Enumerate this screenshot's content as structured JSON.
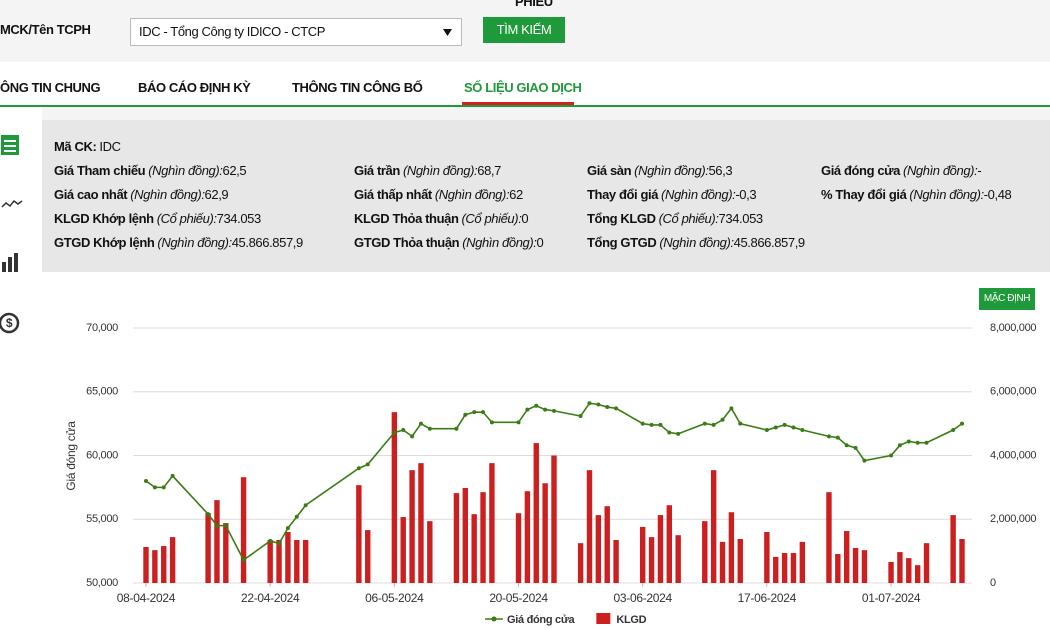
{
  "header": {
    "top_cut": "PHIẾU",
    "search_label": "MCK/Tên TCPH",
    "select_value": "IDC - Tổng Công ty IDICO - CTCP",
    "search_button": "TÌM KIẾM"
  },
  "tabs": [
    "ÔNG TIN CHUNG",
    "BÁO CÁO ĐỊNH KỲ",
    "THÔNG TIN CÔNG BỐ",
    "SỐ LIỆU GIAO DỊCH"
  ],
  "info": {
    "code": {
      "label": "Mã CK:",
      "value": "IDC"
    },
    "columns": [
      [
        {
          "label": "Giá Tham chiếu",
          "unit": "(Nghìn đồng):",
          "value": "62,5"
        },
        {
          "label": "Giá cao nhất",
          "unit": "(Nghìn đồng):",
          "value": "62,9"
        },
        {
          "label": "KLGD Khớp lệnh",
          "unit": "(Cổ phiếu):",
          "value": "734.053"
        },
        {
          "label": "GTGD Khớp lệnh",
          "unit": "(Nghìn đồng):",
          "value": "45.866.857,9"
        }
      ],
      [
        {
          "label": "Giá trần",
          "unit": "(Nghìn đồng):",
          "value": "68,7"
        },
        {
          "label": "Giá thấp nhất",
          "unit": "(Nghìn đồng):",
          "value": "62"
        },
        {
          "label": "KLGD Thỏa thuận",
          "unit": "(Cổ phiếu):",
          "value": "0"
        },
        {
          "label": "GTGD Thỏa thuận",
          "unit": "(Nghìn đồng):",
          "value": "0"
        }
      ],
      [
        {
          "label": "Giá sàn",
          "unit": "(Nghìn đồng):",
          "value": "56,3"
        },
        {
          "label": "Thay đổi giá",
          "unit": "(Nghìn đồng):",
          "value": "-0,3"
        },
        {
          "label": "Tổng KLGD",
          "unit": "(Cổ phiếu):",
          "value": "734.053"
        },
        {
          "label": "Tổng GTGD",
          "unit": "(Nghìn đồng):",
          "value": "45.866.857,9"
        }
      ],
      [
        {
          "label": "Giá đóng cửa",
          "unit": "(Nghìn đồng):",
          "value": "-"
        },
        {
          "label": "% Thay đổi giá",
          "unit": "(Nghìn đồng):",
          "value": "-0,48"
        }
      ]
    ]
  },
  "chart_data": {
    "type": "combo",
    "reset_button": "MẶC ĐỊNH",
    "ylabel": "Giá đóng cửa",
    "x": [
      "08-04-2024",
      "09-04-2024",
      "10-04-2024",
      "11-04-2024",
      "15-04-2024",
      "16-04-2024",
      "17-04-2024",
      "19-04-2024",
      "22-04-2024",
      "23-04-2024",
      "24-04-2024",
      "25-04-2024",
      "26-04-2024",
      "02-05-2024",
      "03-05-2024",
      "06-05-2024",
      "07-05-2024",
      "08-05-2024",
      "09-05-2024",
      "10-05-2024",
      "13-05-2024",
      "14-05-2024",
      "15-05-2024",
      "16-05-2024",
      "17-05-2024",
      "20-05-2024",
      "21-05-2024",
      "22-05-2024",
      "23-05-2024",
      "24-05-2024",
      "27-05-2024",
      "28-05-2024",
      "29-05-2024",
      "30-05-2024",
      "31-05-2024",
      "03-06-2024",
      "04-06-2024",
      "05-06-2024",
      "06-06-2024",
      "07-06-2024",
      "10-06-2024",
      "11-06-2024",
      "12-06-2024",
      "13-06-2024",
      "14-06-2024",
      "17-06-2024",
      "18-06-2024",
      "19-06-2024",
      "20-06-2024",
      "21-06-2024",
      "24-06-2024",
      "25-06-2024",
      "26-06-2024",
      "27-06-2024",
      "28-06-2024",
      "01-07-2024",
      "02-07-2024",
      "03-07-2024",
      "04-07-2024",
      "05-07-2024",
      "08-07-2024",
      "09-07-2024"
    ],
    "xlim": [
      "08-04-2024",
      "09-07-2024"
    ],
    "xticks": [
      "08-04-2024",
      "22-04-2024",
      "06-05-2024",
      "20-05-2024",
      "03-06-2024",
      "17-06-2024",
      "01-07-2024"
    ],
    "ylim": [
      50000,
      70000
    ],
    "yticks": [
      {
        "value": 50000,
        "label": "50,000"
      },
      {
        "value": 55000,
        "label": "55,000"
      },
      {
        "value": 60000,
        "label": "60,000"
      },
      {
        "value": 65000,
        "label": "65,000"
      },
      {
        "value": 70000,
        "label": "70,000"
      }
    ],
    "y2lim": [
      0,
      8000000
    ],
    "y2ticks": [
      0,
      {
        "value": 2000000,
        "label": "2,000,000"
      },
      {
        "value": 4000000,
        "label": "4,000,000"
      },
      {
        "value": 6000000,
        "label": "6,000,000"
      },
      {
        "value": 8000000,
        "label": "8,000,000"
      }
    ],
    "grid": true,
    "series": [
      {
        "name": "Giá đóng cửa",
        "type": "line",
        "color": "#3a7d14",
        "axis": "y",
        "values": [
          58000,
          57500,
          57500,
          58400,
          55400,
          54500,
          54500,
          51800,
          53300,
          53100,
          54300,
          55200,
          56100,
          59000,
          59300,
          61800,
          62000,
          61500,
          62500,
          62100,
          62100,
          63200,
          63400,
          63400,
          62600,
          62600,
          63600,
          63900,
          63600,
          63500,
          63100,
          64100,
          64000,
          63800,
          63700,
          62500,
          62400,
          62400,
          61800,
          61700,
          62500,
          62400,
          62800,
          63700,
          62500,
          62000,
          62200,
          62400,
          62200,
          62000,
          61500,
          61400,
          60800,
          60600,
          59600,
          60000,
          60800,
          61100,
          61000,
          61000,
          62000,
          62500
        ]
      },
      {
        "name": "KLGD",
        "type": "bar",
        "color": "#cc1f1f",
        "axis": "y2",
        "values": [
          1130000,
          1030000,
          1160000,
          1440000,
          2190000,
          2600000,
          1880000,
          3320000,
          1350000,
          1350000,
          1600000,
          1350000,
          1350000,
          3070000,
          1660000,
          5360000,
          2070000,
          3540000,
          3760000,
          1940000,
          2820000,
          2980000,
          2160000,
          2850000,
          3760000,
          2190000,
          2880000,
          4390000,
          3130000,
          4000000,
          1250000,
          3540000,
          2130000,
          2410000,
          1350000,
          1760000,
          1440000,
          2130000,
          2440000,
          1500000,
          1940000,
          3540000,
          1290000,
          2220000,
          1380000,
          1600000,
          820000,
          940000,
          940000,
          1290000,
          2850000,
          910000,
          1630000,
          1100000,
          1030000,
          660000,
          970000,
          780000,
          560000,
          1250000,
          2130000,
          1380000
        ]
      }
    ]
  }
}
